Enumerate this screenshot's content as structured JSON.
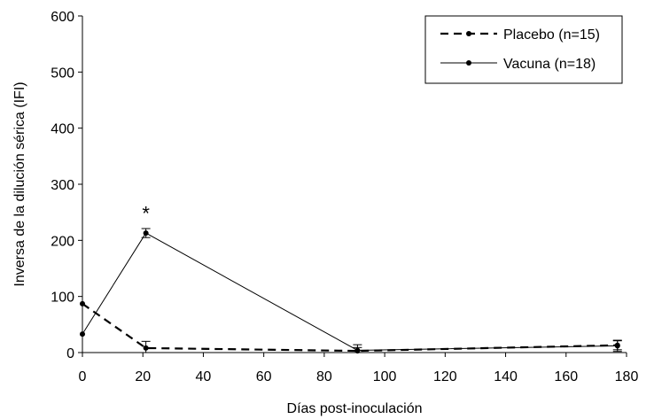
{
  "chart_data": {
    "type": "line",
    "title": "",
    "xlabel": "Días post-inoculación",
    "ylabel": "Inversa de la dilución sérica (IFI)",
    "xlim": [
      0,
      180
    ],
    "ylim": [
      0,
      600
    ],
    "xticks": [
      0,
      20,
      40,
      60,
      80,
      100,
      120,
      140,
      160,
      180
    ],
    "yticks": [
      0,
      100,
      200,
      300,
      400,
      500,
      600
    ],
    "grid": false,
    "legend_position": "top-right",
    "series": [
      {
        "name": "Placebo (n=15)",
        "style": "dashed",
        "color": "#000000",
        "x": [
          0,
          21,
          91,
          177
        ],
        "y": [
          87,
          8,
          3,
          13
        ],
        "error": [
          0,
          12,
          6,
          8
        ]
      },
      {
        "name": "Vacuna (n=18)",
        "style": "solid",
        "color": "#000000",
        "x": [
          0,
          21,
          91,
          177
        ],
        "y": [
          33,
          213,
          4,
          12
        ],
        "error": [
          0,
          8,
          10,
          10
        ]
      }
    ],
    "annotations": [
      {
        "text": "*",
        "x": 21,
        "y": 236
      }
    ]
  }
}
